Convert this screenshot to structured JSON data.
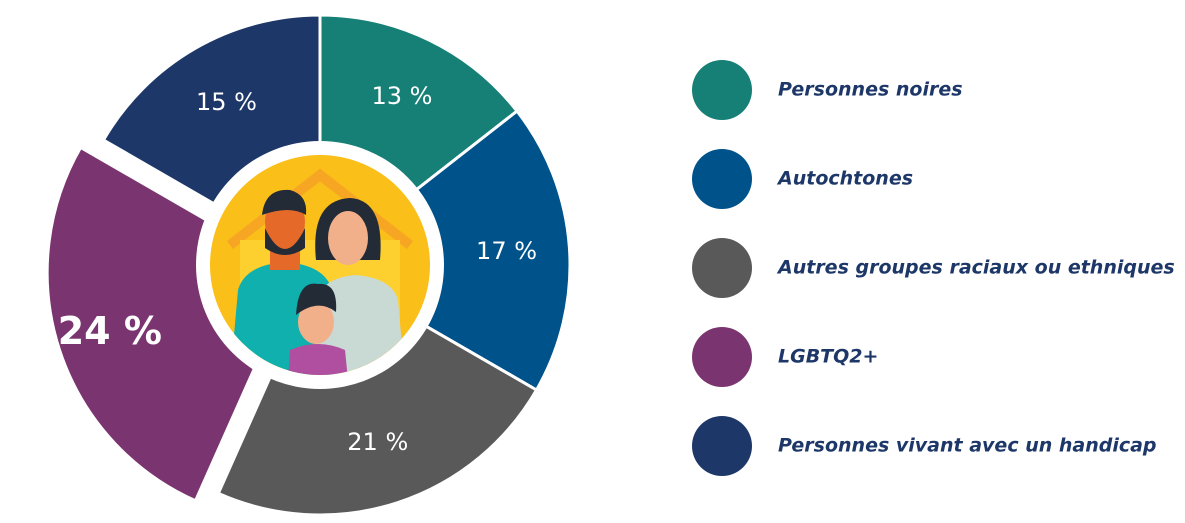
{
  "chart_data": {
    "type": "pie",
    "labels": [
      "Personnes noires",
      "Autochtones",
      "Autres groupes raciaux ou ethniques",
      "LGBTQ2+",
      "Personnes vivant avec un handicap"
    ],
    "values": [
      13,
      17,
      21,
      24,
      15
    ],
    "value_labels": [
      "13 %",
      "17 %",
      "21 %",
      "24 %",
      "15 %"
    ],
    "colors": [
      "#168077",
      "#00528a",
      "#595959",
      "#7a3570",
      "#1d3768"
    ],
    "explode": [
      false,
      false,
      false,
      true,
      false
    ],
    "legend": "right"
  }
}
